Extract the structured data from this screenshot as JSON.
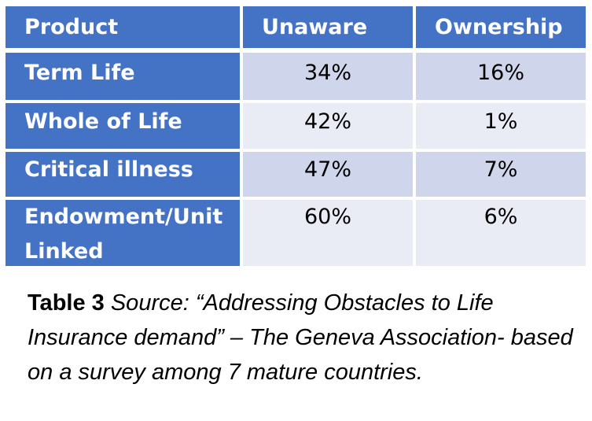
{
  "chart_data": {
    "type": "table",
    "columns": [
      "Product",
      "Unaware",
      "Ownership"
    ],
    "rows": [
      {
        "product": "Term Life",
        "unaware": "34%",
        "ownership": "16%"
      },
      {
        "product": "Whole of Life",
        "unaware": "42%",
        "ownership": "1%"
      },
      {
        "product": "Critical illness",
        "unaware": "47%",
        "ownership": "7%"
      },
      {
        "product": "Endowment/Unit Linked",
        "unaware": "60%",
        "ownership": "6%"
      }
    ],
    "unaware_percent": [
      34,
      42,
      47,
      60
    ],
    "ownership_percent": [
      16,
      1,
      7,
      6
    ]
  },
  "caption": {
    "label": "Table 3",
    "text": "Source: “Addressing Obstacles to Life Insurance demand” – The Geneva Association- based on a survey among 7 mature countries."
  },
  "colors": {
    "header": "#4472c4",
    "row_dark": "#cfd5ea",
    "row_light": "#e9ebf5"
  }
}
